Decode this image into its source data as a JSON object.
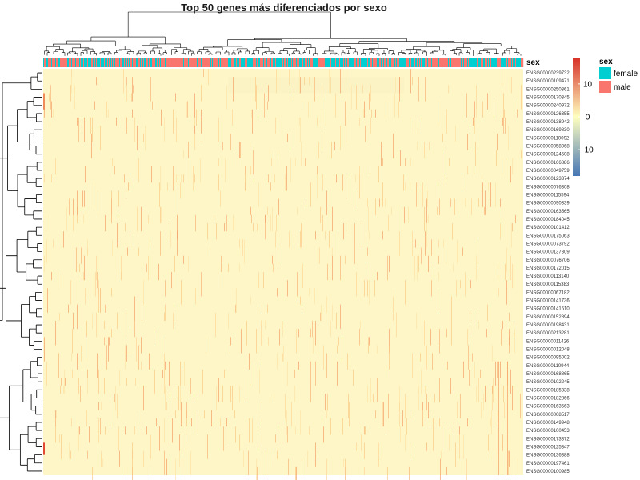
{
  "chart_data": {
    "type": "heatmap",
    "title": "Top 50 genes más diferenciados por sexo",
    "genes": [
      "ENSG00000239732",
      "ENSG00000109471",
      "ENSG00000250361",
      "ENSG00000170345",
      "ENSG00000240972",
      "ENSG00000126355",
      "ENSG00000138942",
      "ENSG00000169830",
      "ENSG00000110092",
      "ENSG00000058068",
      "ENSG00000124508",
      "ENSG00000166886",
      "ENSG00000049759",
      "ENSG00000123374",
      "ENSG00000076308",
      "ENSG00000115594",
      "ENSG00000090339",
      "ENSG00000163565",
      "ENSG00000184045",
      "ENSG00000101412",
      "ENSG00000175063",
      "ENSG00000073792",
      "ENSG00000137309",
      "ENSG00000076706",
      "ENSG00000172015",
      "ENSG00000113140",
      "ENSG00000115383",
      "ENSG00000067182",
      "ENSG00000141736",
      "ENSG00000141510",
      "ENSG00000152894",
      "ENSG00000198431",
      "ENSG00000213281",
      "ENSG00000011426",
      "ENSG00000012048",
      "ENSG00000095002",
      "ENSG00000110944",
      "ENSG00000168865",
      "ENSG00000102245",
      "ENSG00000185338",
      "ENSG00000182866",
      "ENSG00000163563",
      "ENSG00000008517",
      "ENSG00000149948",
      "ENSG00000100453",
      "ENSG00000173372",
      "ENSG00000125347",
      "ENSG00000136388",
      "ENSG00000197461",
      "ENSG00000100985"
    ],
    "annotation": {
      "title": "sex",
      "levels": [
        {
          "name": "female",
          "color": "#00CED1"
        },
        {
          "name": "male",
          "color": "#F8766D"
        }
      ]
    },
    "colorbar": {
      "ticks": [
        10,
        0,
        -10
      ],
      "range": [
        -18,
        18
      ],
      "low_color": "#4575B4",
      "mid_color": "#FFFFBF",
      "high_color": "#D73027"
    },
    "background_color": "#FEF6C6",
    "n_samples": 600
  }
}
